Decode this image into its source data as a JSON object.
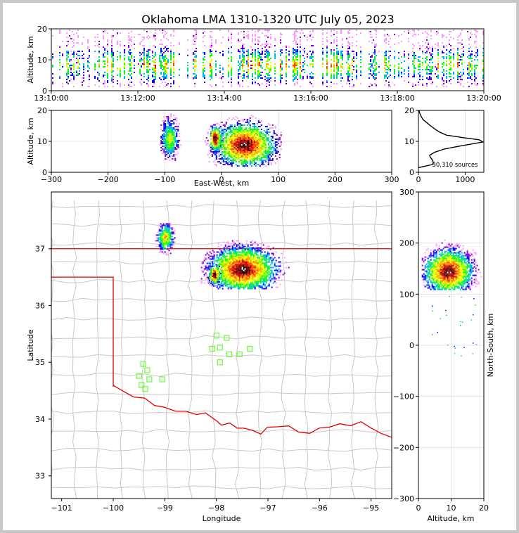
{
  "title": "Oklahoma LMA 1310-1320 UTC July 05, 2023",
  "colors": {
    "state_border": "#e00000",
    "county": "#c8c8c8",
    "station": "#66ff33",
    "frame": "#c8c8c8"
  },
  "colormap": [
    "#ff99ff",
    "#8800cc",
    "#0000ff",
    "#00aaff",
    "#00dd88",
    "#00ff00",
    "#aaff00",
    "#ffff00",
    "#ffaa00",
    "#ff4400",
    "#cc0000",
    "#660000",
    "#000000",
    "#ffffff"
  ],
  "chart_data": [
    {
      "id": "time_altitude",
      "type": "heatmap",
      "ylabel": "Altitude, km",
      "xlim": [
        "13:10:00",
        "13:20:00"
      ],
      "xticks": [
        "13:10:00",
        "13:12:00",
        "13:14:00",
        "13:16:00",
        "13:18:00",
        "13:20:00"
      ],
      "ylim": [
        0,
        20
      ],
      "yticks": [
        "0",
        "10",
        "20"
      ],
      "alt_core": [
        4,
        13
      ]
    },
    {
      "id": "ew_altitude",
      "type": "heatmap",
      "xlabel": "East-West, km",
      "ylabel": "Altitude, km",
      "xlim": [
        -300,
        300
      ],
      "xticks": [
        "−300",
        "−200",
        "−100",
        "0",
        "100",
        "200",
        "300"
      ],
      "ylim": [
        0,
        20
      ],
      "yticks": [
        "0",
        "10",
        "20"
      ],
      "clusters": [
        {
          "x": [
            -110,
            -70
          ],
          "alt": [
            4,
            20
          ],
          "cx": -92,
          "calt": 11,
          "density": 0.6
        },
        {
          "x": [
            -35,
            105
          ],
          "alt": [
            2,
            20
          ],
          "cx": 40,
          "calt": 9,
          "density": 1.0
        },
        {
          "x": [
            -20,
            10
          ],
          "alt": [
            5,
            16
          ],
          "cx": -12,
          "calt": 11,
          "density": 1.0
        }
      ]
    },
    {
      "id": "altitude_histogram",
      "type": "line",
      "annotation": "30,310 sources",
      "xlim": [
        0,
        1400
      ],
      "xticks": [
        "0",
        "1000"
      ],
      "ylim": [
        0,
        20
      ],
      "yticks": [
        "0",
        "10",
        "20"
      ],
      "points": [
        [
          0,
          1.5
        ],
        [
          150,
          2
        ],
        [
          300,
          2.5
        ],
        [
          320,
          3
        ],
        [
          300,
          4
        ],
        [
          250,
          5
        ],
        [
          240,
          5.5
        ],
        [
          350,
          6.5
        ],
        [
          550,
          7.5
        ],
        [
          900,
          8.5
        ],
        [
          1200,
          9.3
        ],
        [
          1380,
          9.8
        ],
        [
          1300,
          10.5
        ],
        [
          950,
          11.2
        ],
        [
          600,
          12
        ],
        [
          450,
          13
        ],
        [
          350,
          14
        ],
        [
          260,
          15
        ],
        [
          180,
          16
        ],
        [
          100,
          17
        ],
        [
          60,
          18
        ],
        [
          30,
          19
        ],
        [
          10,
          20
        ]
      ]
    },
    {
      "id": "plan_view",
      "type": "heatmap",
      "xlabel": "Longitude",
      "ylabel": "Latitude",
      "xlim": [
        -101.2,
        -94.6
      ],
      "ylim": [
        32.6,
        38.0
      ],
      "xticks": [
        "−101",
        "−100",
        "−99",
        "−98",
        "−97",
        "−96",
        "−95"
      ],
      "yticks": [
        "33",
        "34",
        "35",
        "36",
        "37"
      ],
      "clusters": [
        {
          "lon": [
            -99.2,
            -98.8
          ],
          "lat": [
            36.9,
            37.5
          ],
          "clon": -99.0,
          "clat": 37.2,
          "density": 0.7
        },
        {
          "lon": [
            -98.3,
            -96.6
          ],
          "lat": [
            36.3,
            37.3
          ],
          "clon": -97.5,
          "clat": 36.65,
          "density": 1.0
        },
        {
          "lon": [
            -98.2,
            -97.9
          ],
          "lat": [
            36.35,
            36.8
          ],
          "clon": -98.05,
          "clat": 36.55,
          "density": 1.0
        }
      ],
      "stations": [
        [
          -98.0,
          35.47
        ],
        [
          -97.8,
          35.43
        ],
        [
          -98.08,
          35.24
        ],
        [
          -97.93,
          35.26
        ],
        [
          -97.75,
          35.14
        ],
        [
          -97.55,
          35.14
        ],
        [
          -97.35,
          35.24
        ],
        [
          -97.93,
          35.0
        ],
        [
          -99.42,
          34.97
        ],
        [
          -99.34,
          34.86
        ],
        [
          -99.5,
          34.76
        ],
        [
          -99.3,
          34.7
        ],
        [
          -99.05,
          34.7
        ],
        [
          -99.45,
          34.6
        ],
        [
          -99.38,
          34.53
        ]
      ]
    },
    {
      "id": "altitude_ns",
      "type": "heatmap",
      "xlabel": "Altitude, km",
      "ylabel": "North-South, km",
      "xlim": [
        0,
        20
      ],
      "ylim": [
        -300,
        300
      ],
      "xticks": [
        "0",
        "10",
        "20"
      ],
      "yticks": [
        "−300",
        "−200",
        "−100",
        "0",
        "100",
        "200",
        "300"
      ]
    }
  ]
}
